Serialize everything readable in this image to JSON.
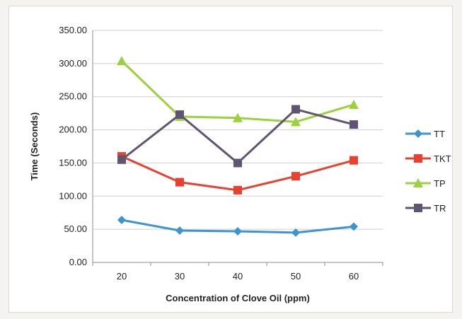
{
  "chart_data": {
    "type": "line",
    "title": "",
    "xlabel": "Concentration of Clove Oil (ppm)",
    "ylabel": "Time (Seconds)",
    "categories": [
      "20",
      "30",
      "40",
      "50",
      "60"
    ],
    "ylim": [
      0,
      350
    ],
    "yticks": [
      "0.00",
      "50.00",
      "100.00",
      "150.00",
      "200.00",
      "250.00",
      "300.00",
      "350.00"
    ],
    "grid": true,
    "legend_position": "right",
    "series": [
      {
        "name": "TT",
        "color": "#3e94cf",
        "marker": "diamond",
        "values": [
          64,
          48,
          47,
          45,
          54
        ]
      },
      {
        "name": "TKT",
        "color": "#e8412f",
        "marker": "square",
        "values": [
          160,
          121,
          109,
          130,
          154
        ]
      },
      {
        "name": "TP",
        "color": "#9ad13c",
        "marker": "triangle",
        "values": [
          304,
          220,
          218,
          212,
          238
        ]
      },
      {
        "name": "TR",
        "color": "#5f5570",
        "marker": "square",
        "values": [
          155,
          223,
          150,
          231,
          208
        ]
      }
    ]
  }
}
